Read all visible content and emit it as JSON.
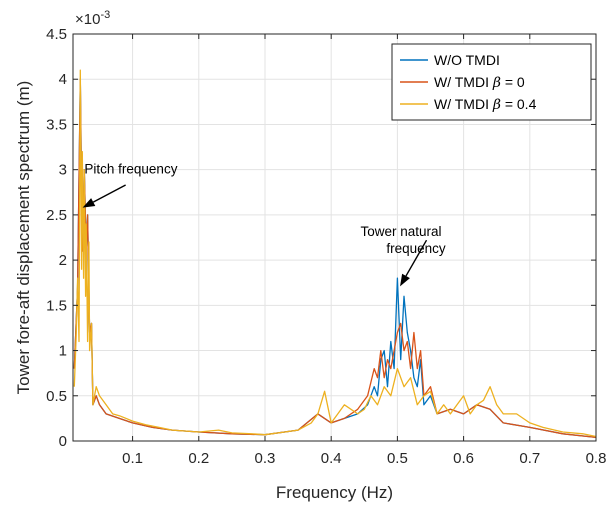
{
  "chart_data": {
    "type": "line",
    "title": "",
    "xlabel": "Frequency (Hz)",
    "ylabel": "Tower fore-aft displacement spectrum (m)",
    "y_exponent_label": "×10",
    "y_exponent_power": "-3",
    "xlim": [
      0.01,
      0.8
    ],
    "ylim": [
      0,
      4.5
    ],
    "x_ticks": [
      0.1,
      0.2,
      0.3,
      0.4,
      0.5,
      0.6,
      0.7,
      0.8
    ],
    "x_tick_labels": [
      "0.1",
      "0.2",
      "0.3",
      "0.4",
      "0.5",
      "0.6",
      "0.7",
      "0.8"
    ],
    "y_ticks": [
      0,
      0.5,
      1,
      1.5,
      2,
      2.5,
      3,
      3.5,
      4,
      4.5
    ],
    "y_tick_labels": [
      "0",
      "0.5",
      "1",
      "1.5",
      "2",
      "2.5",
      "3",
      "3.5",
      "4",
      "4.5"
    ],
    "grid": true,
    "legend_position": "top-right",
    "series": [
      {
        "name": "W/O TMDI",
        "legend_html": "W/O TMDI",
        "color": "#0072BD",
        "x": [
          0.012,
          0.017,
          0.021,
          0.024,
          0.027,
          0.03,
          0.032,
          0.035,
          0.038,
          0.04,
          0.045,
          0.05,
          0.06,
          0.08,
          0.1,
          0.13,
          0.16,
          0.2,
          0.25,
          0.3,
          0.35,
          0.38,
          0.4,
          0.42,
          0.44,
          0.455,
          0.465,
          0.47,
          0.475,
          0.48,
          0.485,
          0.49,
          0.495,
          0.5,
          0.505,
          0.51,
          0.515,
          0.52,
          0.525,
          0.53,
          0.535,
          0.54,
          0.55,
          0.56,
          0.58,
          0.6,
          0.62,
          0.64,
          0.66,
          0.7,
          0.75,
          0.8
        ],
        "y": [
          0.0008,
          0.0017,
          0.004,
          0.0021,
          0.003,
          0.0021,
          0.0025,
          0.0012,
          0.0013,
          0.0004,
          0.0005,
          0.0004,
          0.0003,
          0.00025,
          0.0002,
          0.00015,
          0.00012,
          0.0001,
          8e-05,
          7e-05,
          0.00012,
          0.0003,
          0.0002,
          0.00025,
          0.0003,
          0.0004,
          0.0006,
          0.0005,
          0.0009,
          0.001,
          0.0006,
          0.0011,
          0.0008,
          0.0018,
          0.0009,
          0.0016,
          0.0012,
          0.001,
          0.0007,
          0.0006,
          0.0009,
          0.0004,
          0.0005,
          0.0003,
          0.00035,
          0.0003,
          0.0004,
          0.00035,
          0.0002,
          0.00015,
          8e-05,
          4e-05
        ]
      },
      {
        "name": "W/ TMDI β = 0",
        "legend_html": "W/ TMDI <tspan font-style=\"italic\" font-family=\"DejaVu Serif\">β</tspan> = 0",
        "color": "#D95319",
        "x": [
          0.012,
          0.017,
          0.021,
          0.024,
          0.027,
          0.03,
          0.032,
          0.035,
          0.038,
          0.04,
          0.045,
          0.05,
          0.06,
          0.08,
          0.1,
          0.13,
          0.16,
          0.2,
          0.25,
          0.3,
          0.35,
          0.38,
          0.4,
          0.42,
          0.44,
          0.455,
          0.465,
          0.47,
          0.475,
          0.48,
          0.485,
          0.49,
          0.495,
          0.5,
          0.505,
          0.51,
          0.515,
          0.52,
          0.525,
          0.53,
          0.535,
          0.54,
          0.55,
          0.56,
          0.58,
          0.6,
          0.62,
          0.64,
          0.66,
          0.7,
          0.75,
          0.8
        ],
        "y": [
          0.0008,
          0.0017,
          0.004,
          0.0021,
          0.003,
          0.0021,
          0.0025,
          0.0012,
          0.0013,
          0.0004,
          0.0005,
          0.0004,
          0.0003,
          0.00025,
          0.0002,
          0.00015,
          0.00012,
          0.0001,
          8e-05,
          7e-05,
          0.00012,
          0.0003,
          0.0002,
          0.00025,
          0.00035,
          0.0005,
          0.0008,
          0.0007,
          0.001,
          0.0007,
          0.0009,
          0.0008,
          0.001,
          0.0012,
          0.0013,
          0.001,
          0.0011,
          0.0008,
          0.0012,
          0.0008,
          0.001,
          0.0005,
          0.0006,
          0.0003,
          0.00035,
          0.0003,
          0.0004,
          0.00035,
          0.0002,
          0.00015,
          8e-05,
          4e-05
        ]
      },
      {
        "name": "W/ TMDI β = 0.4",
        "legend_html": "W/ TMDI <tspan font-style=\"italic\" font-family=\"DejaVu Serif\">β</tspan> = 0.4",
        "color": "#EDB120",
        "x": [
          0.012,
          0.015,
          0.017,
          0.019,
          0.021,
          0.023,
          0.024,
          0.026,
          0.027,
          0.029,
          0.03,
          0.032,
          0.034,
          0.035,
          0.038,
          0.04,
          0.045,
          0.05,
          0.06,
          0.07,
          0.08,
          0.1,
          0.12,
          0.14,
          0.16,
          0.2,
          0.23,
          0.25,
          0.28,
          0.3,
          0.33,
          0.35,
          0.37,
          0.38,
          0.39,
          0.4,
          0.41,
          0.42,
          0.44,
          0.45,
          0.46,
          0.47,
          0.48,
          0.49,
          0.5,
          0.51,
          0.52,
          0.53,
          0.54,
          0.55,
          0.56,
          0.57,
          0.58,
          0.59,
          0.6,
          0.61,
          0.62,
          0.63,
          0.64,
          0.65,
          0.66,
          0.68,
          0.7,
          0.72,
          0.75,
          0.78,
          0.8
        ],
        "y": [
          0.0006,
          0.0012,
          0.0018,
          0.0011,
          0.0041,
          0.0019,
          0.0032,
          0.0018,
          0.003,
          0.0016,
          0.0024,
          0.0011,
          0.0022,
          0.001,
          0.0013,
          0.0004,
          0.0006,
          0.0005,
          0.0004,
          0.0003,
          0.00028,
          0.00022,
          0.00018,
          0.00015,
          0.00012,
          0.0001,
          0.00012,
          9e-05,
          8e-05,
          7e-05,
          0.0001,
          0.00012,
          0.0002,
          0.0003,
          0.00055,
          0.0002,
          0.0003,
          0.0004,
          0.0003,
          0.00035,
          0.0005,
          0.0004,
          0.0006,
          0.0005,
          0.0008,
          0.0006,
          0.0007,
          0.0004,
          0.0005,
          0.00055,
          0.0003,
          0.0004,
          0.0003,
          0.0004,
          0.0005,
          0.0003,
          0.0004,
          0.00045,
          0.0006,
          0.0004,
          0.0003,
          0.0003,
          0.0002,
          0.00015,
          0.0001,
          8e-05,
          5e-05
        ]
      }
    ],
    "annotations": [
      {
        "label": "pitch",
        "lines": [
          "Pitch frequency"
        ],
        "text_x": 0.0975,
        "text_y": 0.00296,
        "arrow_from": [
          0.0895,
          0.00283
        ],
        "arrow_to": [
          0.0245,
          0.00258
        ]
      },
      {
        "label": "tower",
        "lines": [
          "Tower natural",
          "frequency"
        ],
        "text_x": 0.5055,
        "text_y": 0.002265,
        "arrow_from": [
          0.544,
          0.00222
        ],
        "arrow_to": [
          0.504,
          0.00171
        ]
      }
    ]
  }
}
